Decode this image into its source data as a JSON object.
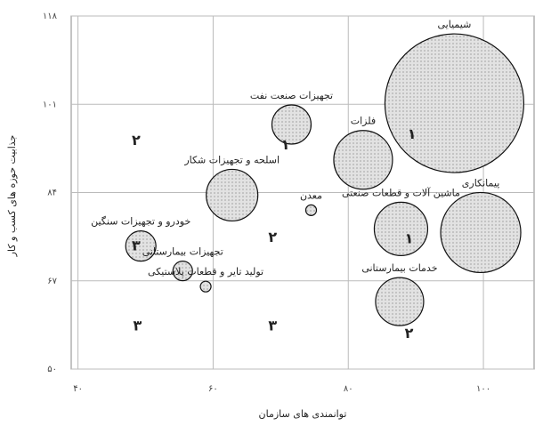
{
  "chart_data": {
    "type": "bubble",
    "x_label": "توانمندی های سازمان",
    "y_label": "جذابیت حوزه های کسب و کار",
    "xlim": [
      39,
      107.5
    ],
    "ylim": [
      50,
      118
    ],
    "xticks": [
      {
        "value": 40,
        "label": "۴۰"
      },
      {
        "value": 60,
        "label": "۶۰"
      },
      {
        "value": 80,
        "label": "۸۰"
      },
      {
        "value": 100,
        "label": "۱۰۰"
      }
    ],
    "yticks": [
      {
        "value": 50,
        "label": "۵۰"
      },
      {
        "value": 67,
        "label": "۶۷"
      },
      {
        "value": 84,
        "label": "۸۴"
      },
      {
        "value": 101,
        "label": "۱۰۱"
      },
      {
        "value": 118,
        "label": "۱۱۸"
      }
    ],
    "grid": true,
    "color": "#e2e2e2",
    "points": [
      {
        "label": "شیمیایی",
        "x": 95.7,
        "y": 101.2,
        "size": 78
      },
      {
        "label": "تجهیزات صنعت نفت",
        "x": 71.6,
        "y": 97.1,
        "size": 22
      },
      {
        "label": "فلزات",
        "x": 82.2,
        "y": 90.3,
        "size": 33
      },
      {
        "label": "اسلحه و تجهیزات شکار",
        "x": 62.8,
        "y": 83.5,
        "size": 29
      },
      {
        "label": "معدن",
        "x": 74.5,
        "y": 80.6,
        "size": 6
      },
      {
        "label": "ماشین آلات و قطعات صنعتی",
        "x": 87.8,
        "y": 77,
        "size": 30
      },
      {
        "label": "پیمانکاری",
        "x": 99.6,
        "y": 76.3,
        "size": 45
      },
      {
        "label": "خودرو و تجهیزات سنگین",
        "x": 49.3,
        "y": 73.7,
        "size": 17
      },
      {
        "label": "تجهیزات بیمارستانی",
        "x": 55.5,
        "y": 68.9,
        "size": 11
      },
      {
        "label": "تولید تایر و قطعات پلاستیکی",
        "x": 58.9,
        "y": 65.9,
        "size": 6
      },
      {
        "label": "خدمات بیمارستانی",
        "x": 87.6,
        "y": 63,
        "size": 27
      }
    ],
    "annotations": [
      {
        "text": "۲",
        "x": 48.6,
        "y": 93.9
      },
      {
        "text": "۱",
        "x": 89.4,
        "y": 95.1
      },
      {
        "text": "۱",
        "x": 70.7,
        "y": 93.1
      },
      {
        "text": "۳",
        "x": 48.6,
        "y": 73.6
      },
      {
        "text": "۲",
        "x": 68.8,
        "y": 75.3
      },
      {
        "text": "۱",
        "x": 89.0,
        "y": 75.0
      },
      {
        "text": "۳",
        "x": 48.8,
        "y": 58.2
      },
      {
        "text": "۳",
        "x": 68.8,
        "y": 58.2
      },
      {
        "text": "۲",
        "x": 89.0,
        "y": 56.8
      }
    ]
  }
}
